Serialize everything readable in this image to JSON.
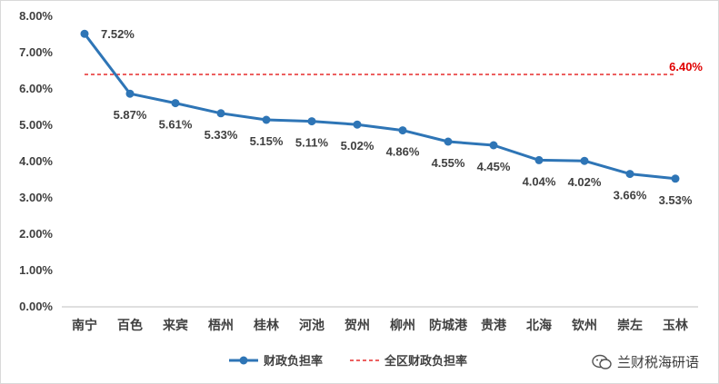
{
  "chart_data": {
    "type": "line",
    "categories": [
      "南宁",
      "百色",
      "来宾",
      "梧州",
      "桂林",
      "河池",
      "贺州",
      "柳州",
      "防城港",
      "贵港",
      "北海",
      "钦州",
      "崇左",
      "玉林"
    ],
    "series": [
      {
        "name": "财政负担率",
        "values": [
          7.52,
          5.87,
          5.61,
          5.33,
          5.15,
          5.11,
          5.02,
          4.86,
          4.55,
          4.45,
          4.04,
          4.02,
          3.66,
          3.53
        ],
        "labels": [
          "7.52%",
          "5.87%",
          "5.61%",
          "5.33%",
          "5.15%",
          "5.11%",
          "5.02%",
          "4.86%",
          "4.55%",
          "4.45%",
          "4.04%",
          "4.02%",
          "3.66%",
          "3.53%"
        ],
        "color": "#2e75b6"
      },
      {
        "name": "全区财政负担率",
        "value": 6.4,
        "label": "6.40%",
        "color": "#e00000",
        "style": "dashed"
      }
    ],
    "ylim": [
      0,
      8
    ],
    "yticks": [
      0,
      1,
      2,
      3,
      4,
      5,
      6,
      7,
      8
    ],
    "ytick_labels": [
      "0.00%",
      "1.00%",
      "2.00%",
      "3.00%",
      "4.00%",
      "5.00%",
      "6.00%",
      "7.00%",
      "8.00%"
    ],
    "grid": false,
    "legend_position": "bottom"
  },
  "watermark": {
    "text": "兰财税海研语",
    "icon": "wechat-icon"
  }
}
